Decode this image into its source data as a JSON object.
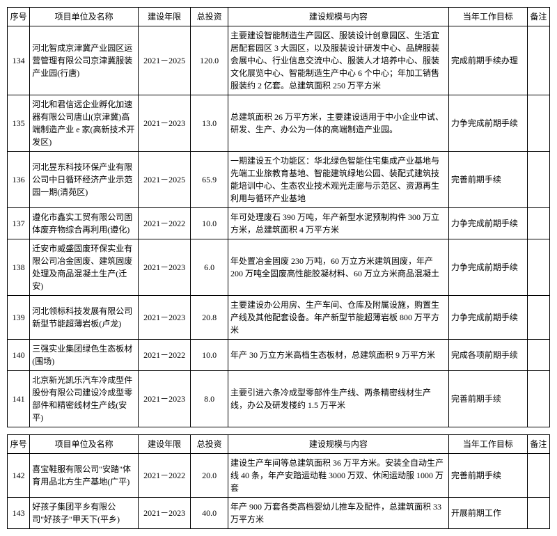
{
  "headers": {
    "seq": "序号",
    "name": "项目单位及名称",
    "year": "建设年限",
    "invest": "总投资",
    "scope": "建设规模与内容",
    "goal": "当年工作目标",
    "note": "备注"
  },
  "table1": [
    {
      "seq": "134",
      "name": "河北智成京津冀产业园区运营管理有限公司京津冀服装产业园(行唐)",
      "year": "2021－2025",
      "invest": "120.0",
      "scope": "主要建设智能制造生产园区、服装设计创意园区、生活宜居配套园区 3 大园区，以及服装设计研发中心、品牌服装会展中心、行业信息交流中心、服装人才培养中心、服装文化展览中心、智能制造生产中心 6 个中心；年加工销售服装约 2 亿套。总建筑面积 250 万平方米",
      "goal": "完成前期手续办理",
      "note": ""
    },
    {
      "seq": "135",
      "name": "河北和君信远企业孵化加速器有限公司唐山(京津冀)高端制造产业 e 家(高新技术开发区)",
      "year": "2021－2023",
      "invest": "13.0",
      "scope": "总建筑面积 26 万平方米，主要建设适用于中小企业中试、研发、生产、办公为一体的高端制造产业园。",
      "goal": "力争完成前期手续",
      "note": ""
    },
    {
      "seq": "136",
      "name": "河北昱东科技环保产业有限公司中日循环经济产业示范园一期(清苑区)",
      "year": "2021－2025",
      "invest": "65.9",
      "scope": "一期建设五个功能区：华北绿色智能住宅集成产业基地与先端工业旅教育基地、智能建筑绿地公园、装配式建筑技能培训中心、生态农业技术观光走廊与示范区、资源再生利用与循环产业基地",
      "goal": "完善前期手续",
      "note": ""
    },
    {
      "seq": "137",
      "name": "遵化市鑫实工贸有限公司固体废弃物综合再利用(遵化)",
      "year": "2021－2022",
      "invest": "10.0",
      "scope": "年可处理废石 390 万吨，年产新型水泥预制构件 300 万立方米，总建筑面积 4 万平方米",
      "goal": "力争完成前期手续",
      "note": ""
    },
    {
      "seq": "138",
      "name": "迁安市威盛固废环保实业有限公司冶金固废、建筑固废处理及商品混凝土生产(迁安)",
      "year": "2021－2023",
      "invest": "6.0",
      "scope": "年处置冶金固废 230 万吨，60 万立方米建筑固废，年产 200 万吨全固废高性能胶凝材料、60 万立方米商品混凝土",
      "goal": "力争完成前期手续",
      "note": ""
    },
    {
      "seq": "139",
      "name": "河北领标科技发展有限公司新型节能超薄岩板(卢龙)",
      "year": "2021－2023",
      "invest": "20.8",
      "scope": "主要建设办公用房、生产车间、仓库及附属设施，购置生产线及其他配套设备。年产新型节能超薄岩板 800 万平方米",
      "goal": "力争完成前期手续",
      "note": ""
    },
    {
      "seq": "140",
      "name": "三强实业集团绿色生态板材(围场)",
      "year": "2021－2022",
      "invest": "10.0",
      "scope": "年产 30 万立方米高档生态板材，总建筑面积 9 万平方米",
      "goal": "完成各项前期手续",
      "note": ""
    },
    {
      "seq": "141",
      "name": "北京新光凯乐汽车冷成型件股份有限公司建设冷成型零部件和精密线材生产线(安平)",
      "year": "2021－2023",
      "invest": "8.0",
      "scope": "主要引进六条冷成型零部件生产线、两条精密线材生产线，办公及研发楼约 1.5 万平米",
      "goal": "完善前期手续",
      "note": ""
    }
  ],
  "table2": [
    {
      "seq": "142",
      "name": "喜宝鞋服有限公司\"安踏\"体育用品北方生产基地(广平)",
      "year": "2021－2022",
      "invest": "20.0",
      "scope": "建设生产车间等总建筑面积 36 万平方米。安装全自动生产线 40 条，年产安踏运动鞋 3000 万双、休闲运动服 1000 万套",
      "goal": "完善前期手续",
      "note": ""
    },
    {
      "seq": "143",
      "name": "好孩子集团平乡有限公司\"好孩子\"甲天下(平乡)",
      "year": "2021－2023",
      "invest": "40.0",
      "scope": "年产 900 万套各类高档婴幼儿推车及配件，总建筑面积 33 万平方米",
      "goal": "开展前期工作",
      "note": ""
    }
  ]
}
